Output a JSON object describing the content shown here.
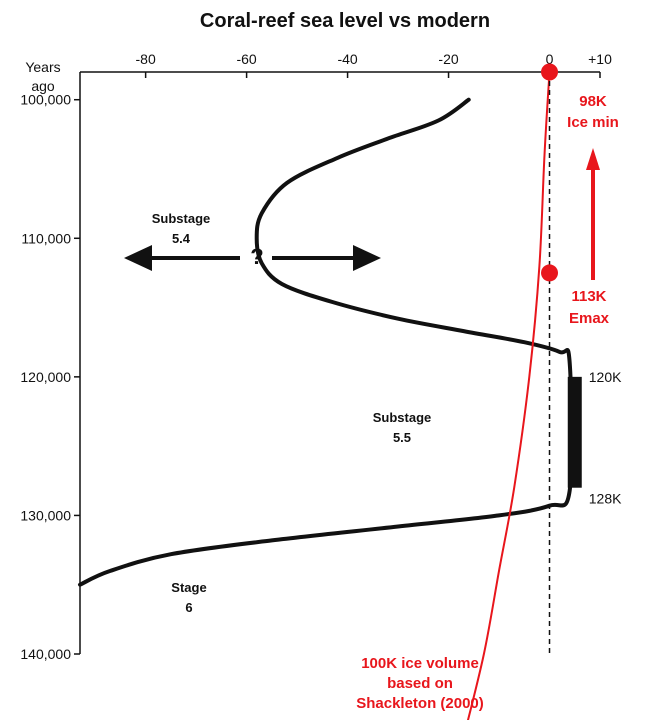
{
  "chart_data": {
    "type": "line",
    "title": "Coral-reef sea level vs modern",
    "ylabel": "Years ago",
    "x_ticks": [
      {
        "value": -80,
        "label": "-80"
      },
      {
        "value": -60,
        "label": "-60"
      },
      {
        "value": -40,
        "label": "-40"
      },
      {
        "value": -20,
        "label": "-20"
      },
      {
        "value": 0,
        "label": "0"
      },
      {
        "value": 10,
        "label": "+10"
      }
    ],
    "y_ticks": [
      {
        "value": 100000,
        "label": "100,000"
      },
      {
        "value": 110000,
        "label": "110,000"
      },
      {
        "value": 120000,
        "label": "120,000"
      },
      {
        "value": 130000,
        "label": "130,000"
      },
      {
        "value": 140000,
        "label": "140,000"
      }
    ],
    "xlim": [
      -93,
      10
    ],
    "ylim": [
      98000,
      140000
    ],
    "y_inverted": true,
    "grid": false,
    "series": [
      {
        "color": "#111111",
        "points": [
          [
            -16,
            100000
          ],
          [
            -22,
            101500
          ],
          [
            -32,
            102800
          ],
          [
            -42,
            104200
          ],
          [
            -52,
            106000
          ],
          [
            -57,
            108200
          ],
          [
            -58,
            110000
          ],
          [
            -57,
            111800
          ],
          [
            -53,
            113300
          ],
          [
            -43,
            114600
          ],
          [
            -30,
            115800
          ],
          [
            -17,
            116700
          ],
          [
            -5,
            117500
          ],
          [
            2,
            118200
          ],
          [
            4,
            119000
          ],
          [
            4,
            128200
          ],
          [
            0,
            129300
          ],
          [
            -10,
            130000
          ],
          [
            -30,
            130800
          ],
          [
            -55,
            131800
          ],
          [
            -75,
            132800
          ],
          [
            -87,
            134000
          ],
          [
            -93,
            135000
          ]
        ]
      },
      {
        "color": "#e8161c",
        "points": [
          [
            0,
            98000
          ],
          [
            -1,
            104000
          ],
          [
            -2,
            112000
          ],
          [
            -4,
            120000
          ],
          [
            -7,
            128000
          ],
          [
            -10,
            134000
          ],
          [
            -13,
            140000
          ],
          [
            -17,
            146000
          ]
        ]
      }
    ],
    "markers": [
      {
        "x": 0,
        "y": 98000,
        "color": "#e8161c"
      },
      {
        "x": 0,
        "y": 112500,
        "color": "#e8161c"
      }
    ],
    "bar": {
      "x": 5,
      "y_from": 120000,
      "y_to": 128000,
      "label_top": "120K",
      "label_bottom": "128K"
    },
    "modern_level_line": {
      "x": 0,
      "style": "dashed"
    },
    "annotations": {
      "ice_min": [
        "98K",
        "Ice min"
      ],
      "emax": [
        "113K",
        "Emax"
      ],
      "substage_54": [
        "Substage",
        "5.4"
      ],
      "question": "?",
      "substage_55": [
        "Substage",
        "5.5"
      ],
      "stage_6": [
        "Stage",
        "6"
      ],
      "ice_volume": [
        "100K ice volume",
        "based on",
        "Shackleton (2000)"
      ]
    }
  }
}
